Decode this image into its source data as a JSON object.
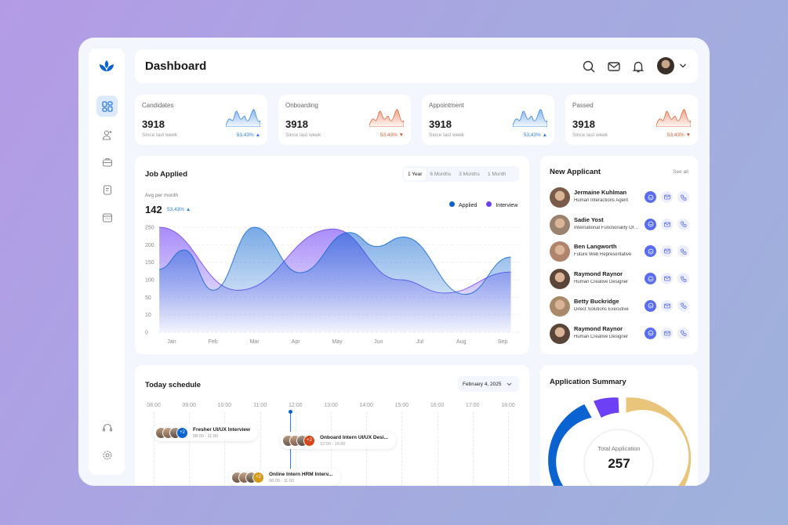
{
  "header": {
    "title": "Dashboard",
    "icons": [
      "search-icon",
      "mail-icon",
      "bell-icon",
      "avatar",
      "chevron-down-icon"
    ]
  },
  "sidebar": {
    "items": [
      {
        "icon": "dashboard-icon",
        "active": true
      },
      {
        "icon": "add-user-icon"
      },
      {
        "icon": "briefcase-icon"
      },
      {
        "icon": "clipboard-icon"
      },
      {
        "icon": "calendar-icon"
      },
      {
        "icon": "headset-icon"
      },
      {
        "icon": "settings-icon"
      }
    ]
  },
  "stats": [
    {
      "label": "Candidates",
      "value": "3918",
      "sub": "Since last week",
      "pct": "53,43%",
      "trend": "up",
      "color": "#2a7de1"
    },
    {
      "label": "Onboarding",
      "value": "3918",
      "sub": "Since last week",
      "pct": "53,43%",
      "trend": "down",
      "color": "#e05a2b"
    },
    {
      "label": "Appointment",
      "value": "3918",
      "sub": "Since last week",
      "pct": "53,43%",
      "trend": "up",
      "color": "#2a7de1"
    },
    {
      "label": "Passed",
      "value": "3918",
      "sub": "Since last week",
      "pct": "53,43%",
      "trend": "down",
      "color": "#e05a2b"
    }
  ],
  "job": {
    "title": "Job Applied",
    "tabs": [
      "1 Year",
      "6 Months",
      "3 Months",
      "1 Month"
    ],
    "active_tab": "1 Year",
    "avg_label": "Avg per month",
    "avg_value": "142",
    "avg_pct": "53,43%"
  },
  "chart_data": {
    "type": "area",
    "categories": [
      "Jan",
      "Feb",
      "Mar",
      "Apr",
      "May",
      "Jun",
      "Jul",
      "Aug",
      "Sep"
    ],
    "yticks": [
      0,
      10,
      50,
      100,
      150,
      200,
      250
    ],
    "ylim": [
      0,
      250
    ],
    "grid": true,
    "legend": "top-right",
    "series": [
      {
        "name": "Applied",
        "color": "#0a63d0",
        "points": [
          [
            -0.3,
            130
          ],
          [
            0.3,
            185
          ],
          [
            1,
            70
          ],
          [
            2,
            250
          ],
          [
            3.1,
            120
          ],
          [
            4.3,
            235
          ],
          [
            4.95,
            195
          ],
          [
            5.6,
            222
          ],
          [
            7.1,
            58
          ],
          [
            8.2,
            165
          ]
        ]
      },
      {
        "name": "Interview",
        "color": "#6d3ff5",
        "points": [
          [
            -0.3,
            250
          ],
          [
            1.6,
            70
          ],
          [
            3.9,
            245
          ],
          [
            5.5,
            100
          ],
          [
            6.6,
            62
          ],
          [
            8.2,
            122
          ]
        ]
      }
    ]
  },
  "applicants": {
    "title": "New Applicant",
    "see_all": "See all",
    "items": [
      {
        "name": "Jermaine Kuhlman",
        "role": "Human Interactions Agent"
      },
      {
        "name": "Sadie Yost",
        "role": "International Functionality Officer"
      },
      {
        "name": "Ben Langworth",
        "role": "Future Web Representative"
      },
      {
        "name": "Raymond Raynor",
        "role": "Human Creative Designer"
      },
      {
        "name": "Betty Buckridge",
        "role": "Direct Solutions Executive"
      },
      {
        "name": "Raymond Raynor",
        "role": "Human Creative Designer"
      }
    ]
  },
  "schedule": {
    "title": "Today schedule",
    "date": "February 4, 2025",
    "hours": [
      "08:00",
      "09:00",
      "10:00",
      "11:00",
      "12:00",
      "13:00",
      "14:00",
      "15:00",
      "16:00",
      "17:00",
      "18:00"
    ],
    "events": [
      {
        "title": "Fresher UI/UX Interview",
        "time": "08:00 - 11:00",
        "extra": "+2",
        "color": "#0a63d0"
      },
      {
        "title": "Onboard Intern UI/UX Desi...",
        "time": "12:00 - 15:00",
        "extra": "+2",
        "color": "#d6451c"
      },
      {
        "title": "Online Intern HRM Interv...",
        "time": "08:00 - 11:00",
        "extra": "+2",
        "color": "#d69a1a"
      }
    ]
  },
  "summary": {
    "title": "Application Summary",
    "center_label": "Total Application",
    "total": "257",
    "segments": [
      {
        "color": "#0a63d0"
      },
      {
        "color": "#6d3ff5"
      },
      {
        "color": "#e8c57a"
      }
    ]
  }
}
